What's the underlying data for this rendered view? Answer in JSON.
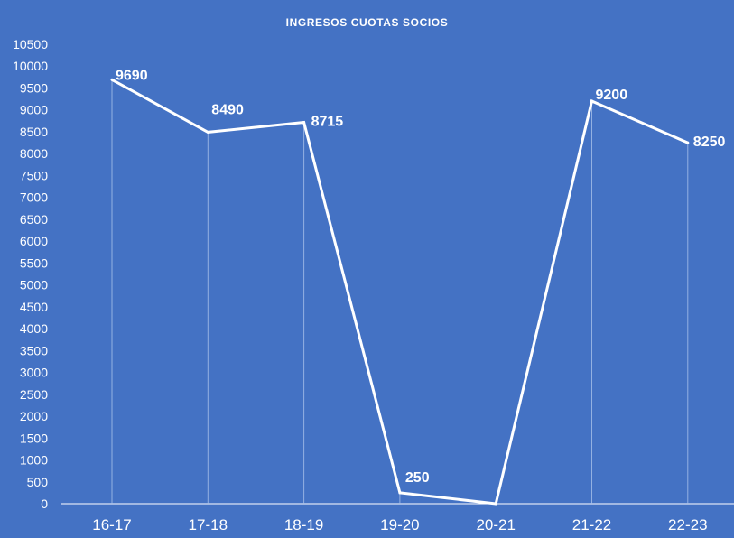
{
  "chart_data": {
    "type": "line",
    "title": "INGRESOS CUOTAS SOCIOS",
    "categories": [
      "16-17",
      "17-18",
      "18-19",
      "19-20",
      "20-21",
      "21-22",
      "22-23"
    ],
    "series": [
      {
        "values": [
          9690,
          8490,
          8715,
          250,
          0,
          9200,
          8250
        ]
      }
    ],
    "data_labels": [
      "9690",
      "8490",
      "8715",
      "250",
      "",
      "9200",
      "8250"
    ],
    "y_ticks": [
      0,
      500,
      1000,
      1500,
      2000,
      2500,
      3000,
      3500,
      4000,
      4500,
      5000,
      5500,
      6000,
      6500,
      7000,
      7500,
      8000,
      8500,
      9000,
      9500,
      10000,
      10500
    ],
    "ylim": [
      0,
      10500
    ],
    "xlabel": "",
    "ylabel": "",
    "grid": false,
    "legend": "none",
    "colors": {
      "background": "#4472c4",
      "line": "#ffffff",
      "text": "#ffffff",
      "drop_lines": "#a9c1ea"
    }
  }
}
